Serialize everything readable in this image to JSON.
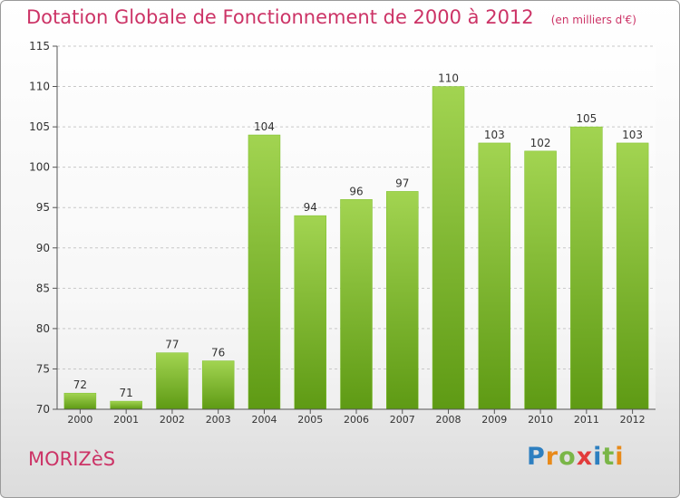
{
  "chart_data": {
    "type": "bar",
    "title": "Dotation Globale de Fonctionnement de 2000 à 2012",
    "subtitle": "(en milliers d'€)",
    "categories": [
      "2000",
      "2001",
      "2002",
      "2003",
      "2004",
      "2005",
      "2006",
      "2007",
      "2008",
      "2009",
      "2010",
      "2011",
      "2012"
    ],
    "values": [
      72,
      71,
      77,
      76,
      104,
      94,
      96,
      97,
      110,
      103,
      102,
      105,
      103
    ],
    "ylim": [
      70,
      115
    ],
    "yticks": [
      70,
      75,
      80,
      85,
      90,
      95,
      100,
      105,
      110,
      115
    ],
    "grid": true,
    "bar_color": "#7cbf2a",
    "bar_color_light": "#a2d451",
    "bar_color_dark": "#5e9a14"
  },
  "footer": {
    "commune": "MORIZèS"
  },
  "logo": {
    "letters": [
      "P",
      "r",
      "o",
      "x",
      "i",
      "t",
      "i"
    ],
    "colors": [
      "#2d7fc0",
      "#e88a1a",
      "#7ab648",
      "#e23b3b",
      "#2d7fc0",
      "#7ab648",
      "#e88a1a"
    ]
  }
}
